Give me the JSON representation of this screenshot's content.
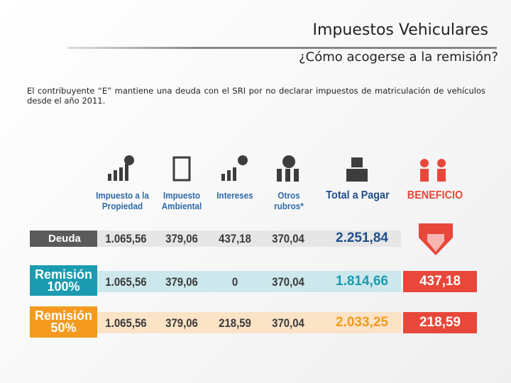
{
  "header": {
    "title": "Impuestos Vehiculares",
    "subtitle": "¿Cómo acogerse a la remisión?"
  },
  "intro": "El contribuyente “E” mantiene una deuda con el SRI por no declarar impuestos de matriculación de vehículos desde el año 2011.",
  "table": {
    "columns": [
      "Impuesto a la Propiedad",
      "Impuesto Ambiental",
      "Intereses",
      "Otros rubros*",
      "Total a Pagar",
      "BENEFICIO"
    ],
    "rows": [
      {
        "label": "Deuda",
        "cells": [
          "1.065,56",
          "379,06",
          "437,18",
          "370,04",
          "2.251,84"
        ]
      },
      {
        "label": "Remisión 100%",
        "cells": [
          "1.065,56",
          "379,06",
          "0",
          "370,04",
          "1.814,66",
          "437,18"
        ]
      },
      {
        "label": "Remisión 50%",
        "cells": [
          "1.065,56",
          "379,06",
          "218,59",
          "370,04",
          "2.033,25",
          "218,59"
        ]
      }
    ]
  }
}
